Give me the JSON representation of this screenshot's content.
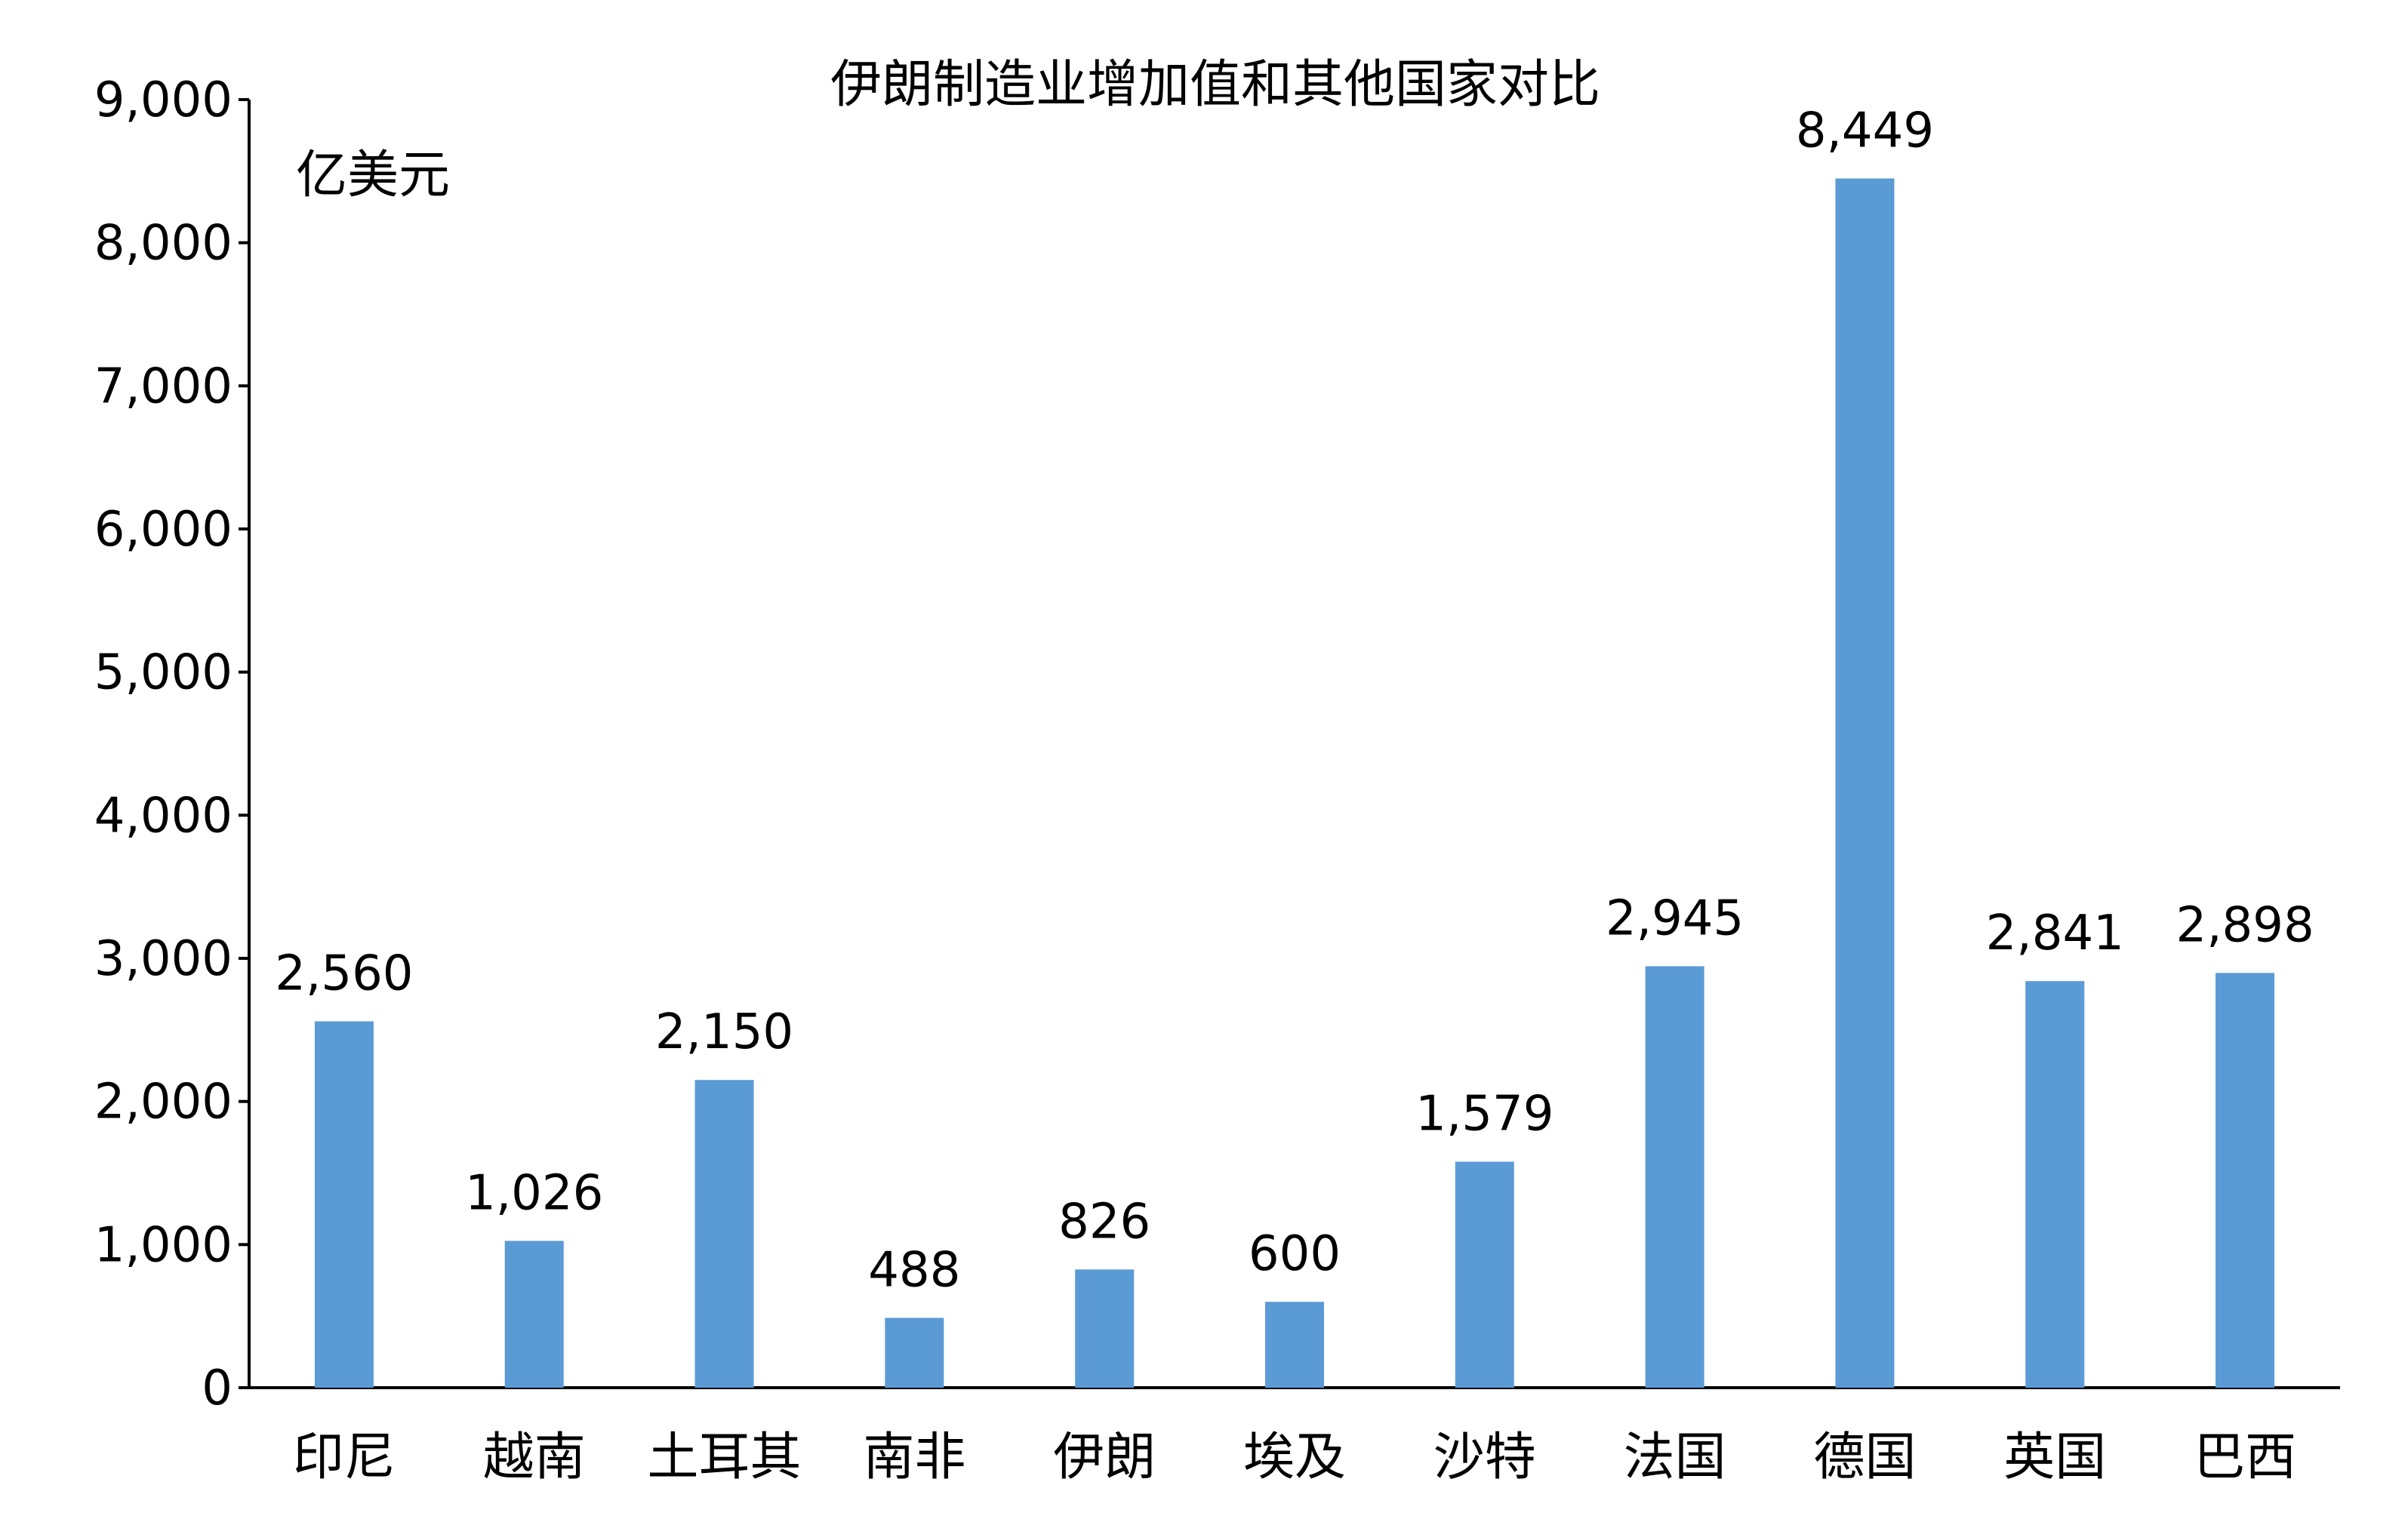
{
  "chart_data": {
    "type": "bar",
    "title": "伊朗制造业增加值和其他国家对比",
    "unit": "亿美元",
    "categories": [
      "印尼",
      "越南",
      "土耳其",
      "南非",
      "伊朗",
      "埃及",
      "沙特",
      "法国",
      "德国",
      "英国",
      "巴西"
    ],
    "values": [
      2560,
      1026,
      2150,
      488,
      826,
      600,
      1579,
      2945,
      8449,
      2841,
      2898
    ],
    "value_labels": [
      "2,560",
      "1,026",
      "2,150",
      "488",
      "826",
      "600",
      "1,579",
      "2,945",
      "8,449",
      "2,841",
      "2,898"
    ],
    "ylim": [
      0,
      9000
    ],
    "yticks": [
      0,
      1000,
      2000,
      3000,
      4000,
      5000,
      6000,
      7000,
      8000,
      9000
    ],
    "ytick_labels": [
      "0",
      "1,000",
      "2,000",
      "3,000",
      "4,000",
      "5,000",
      "6,000",
      "7,000",
      "8,000",
      "9,000"
    ],
    "bar_color": "#5B9BD5",
    "grid": false,
    "legend": "none"
  }
}
